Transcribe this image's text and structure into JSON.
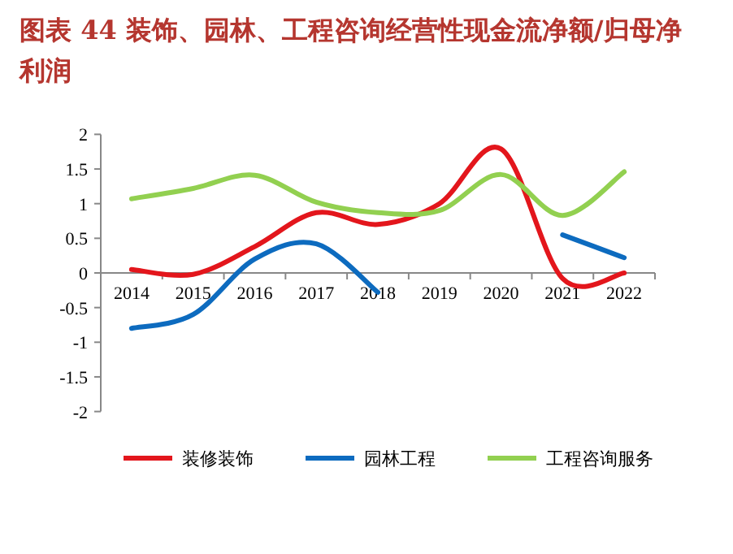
{
  "chart_data": {
    "type": "line",
    "title": "图表 44    装饰、园林、工程咨询经营性现金流净额/归母净利润",
    "categories": [
      "2014",
      "2015",
      "2016",
      "2017",
      "2018",
      "2019",
      "2020",
      "2021",
      "2022"
    ],
    "series": [
      {
        "name": "装修装饰",
        "color": "#e3161c",
        "values": [
          0.05,
          -0.02,
          0.38,
          0.87,
          0.7,
          1.0,
          1.79,
          -0.08,
          0.0
        ]
      },
      {
        "name": "园林工程",
        "color": "#0d6bbf",
        "values": [
          -0.8,
          -0.6,
          0.2,
          0.42,
          -0.28,
          null,
          null,
          0.55,
          0.22
        ]
      },
      {
        "name": "工程咨询服务",
        "color": "#92d050",
        "values": [
          1.07,
          1.22,
          1.41,
          1.02,
          0.87,
          0.9,
          1.42,
          0.83,
          1.46
        ]
      }
    ],
    "ylim": [
      -2,
      2
    ],
    "yticks": [
      -2,
      -1.5,
      -1,
      -0.5,
      0,
      0.5,
      1,
      1.5,
      2
    ],
    "legend": "bottom"
  }
}
